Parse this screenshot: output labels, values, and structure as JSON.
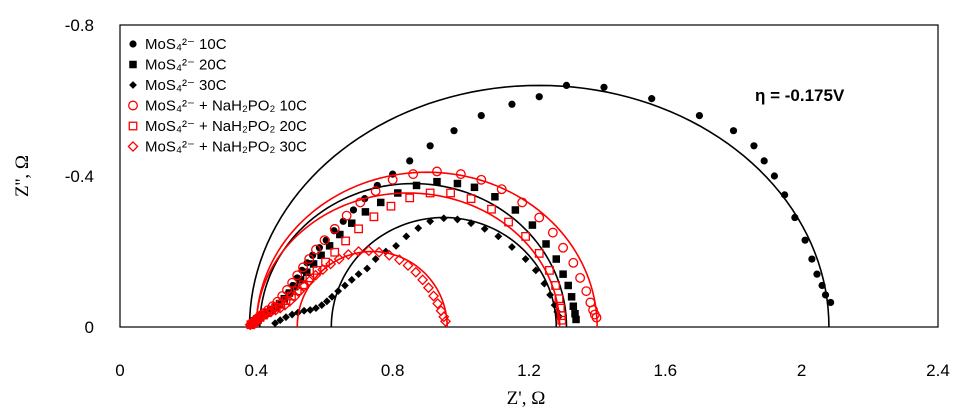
{
  "chart_data": {
    "type": "scatter",
    "title": "",
    "xlabel": "Z', Ω",
    "ylabel": "Z'', Ω",
    "xlim": [
      0,
      2.4
    ],
    "ylim": [
      0,
      -0.8
    ],
    "x_ticks": [
      "0",
      "0.4",
      "0.8",
      "1.2",
      "1.6",
      "2",
      "2.4"
    ],
    "y_ticks": [
      "0",
      "-0.4",
      "-0.8"
    ],
    "annotation": "η = -0.175V",
    "legend_position": "top-left",
    "series": [
      {
        "name": "MoS₄²⁻ 10C",
        "color": "#000000",
        "marker": "circle-filled",
        "semicircle": {
          "x0": 0.38,
          "x1": 2.08,
          "peak": -0.64
        },
        "points": [
          [
            0.384,
            -0.01
          ],
          [
            0.389,
            -0.015
          ],
          [
            0.395,
            -0.02
          ],
          [
            0.402,
            -0.026
          ],
          [
            0.41,
            -0.03
          ],
          [
            0.42,
            -0.035
          ],
          [
            0.432,
            -0.04
          ],
          [
            0.445,
            -0.045
          ],
          [
            0.458,
            -0.05
          ],
          [
            0.47,
            -0.06
          ],
          [
            0.482,
            -0.075
          ],
          [
            0.494,
            -0.09
          ],
          [
            0.507,
            -0.11
          ],
          [
            0.52,
            -0.13
          ],
          [
            0.534,
            -0.15
          ],
          [
            0.549,
            -0.17
          ],
          [
            0.565,
            -0.19
          ],
          [
            0.585,
            -0.21
          ],
          [
            0.605,
            -0.23
          ],
          [
            0.628,
            -0.255
          ],
          [
            0.655,
            -0.28
          ],
          [
            0.685,
            -0.31
          ],
          [
            0.718,
            -0.34
          ],
          [
            0.755,
            -0.375
          ],
          [
            0.8,
            -0.405
          ],
          [
            0.85,
            -0.44
          ],
          [
            0.91,
            -0.48
          ],
          [
            0.98,
            -0.52
          ],
          [
            1.06,
            -0.56
          ],
          [
            1.15,
            -0.59
          ],
          [
            1.23,
            -0.61
          ],
          [
            1.31,
            -0.64
          ],
          [
            1.42,
            -0.635
          ],
          [
            1.56,
            -0.605
          ],
          [
            1.7,
            -0.56
          ],
          [
            1.8,
            -0.52
          ],
          [
            1.86,
            -0.48
          ],
          [
            1.89,
            -0.44
          ],
          [
            1.92,
            -0.4
          ],
          [
            1.95,
            -0.35
          ],
          [
            1.98,
            -0.29
          ],
          [
            2.01,
            -0.23
          ],
          [
            2.03,
            -0.18
          ],
          [
            2.045,
            -0.14
          ],
          [
            2.06,
            -0.11
          ],
          [
            2.07,
            -0.085
          ],
          [
            2.085,
            -0.065
          ]
        ]
      },
      {
        "name": "MoS₄²⁻  20C",
        "color": "#000000",
        "marker": "square-filled",
        "semicircle": {
          "x0": 0.41,
          "x1": 1.31,
          "peak": -0.38
        },
        "points": [
          [
            0.392,
            -0.008
          ],
          [
            0.398,
            -0.013
          ],
          [
            0.405,
            -0.018
          ],
          [
            0.412,
            -0.024
          ],
          [
            0.42,
            -0.03
          ],
          [
            0.43,
            -0.037
          ],
          [
            0.442,
            -0.044
          ],
          [
            0.455,
            -0.052
          ],
          [
            0.468,
            -0.062
          ],
          [
            0.482,
            -0.075
          ],
          [
            0.497,
            -0.09
          ],
          [
            0.513,
            -0.107
          ],
          [
            0.53,
            -0.125
          ],
          [
            0.548,
            -0.145
          ],
          [
            0.568,
            -0.167
          ],
          [
            0.59,
            -0.19
          ],
          [
            0.615,
            -0.215
          ],
          [
            0.645,
            -0.245
          ],
          [
            0.68,
            -0.275
          ],
          [
            0.72,
            -0.305
          ],
          [
            0.765,
            -0.33
          ],
          [
            0.815,
            -0.355
          ],
          [
            0.87,
            -0.375
          ],
          [
            0.93,
            -0.385
          ],
          [
            0.99,
            -0.38
          ],
          [
            1.04,
            -0.37
          ],
          [
            1.1,
            -0.345
          ],
          [
            1.16,
            -0.31
          ],
          [
            1.21,
            -0.27
          ],
          [
            1.25,
            -0.22
          ],
          [
            1.28,
            -0.18
          ],
          [
            1.3,
            -0.14
          ],
          [
            1.315,
            -0.11
          ],
          [
            1.325,
            -0.08
          ],
          [
            1.33,
            -0.055
          ],
          [
            1.335,
            -0.035
          ],
          [
            1.338,
            -0.02
          ]
        ]
      },
      {
        "name": "MoS₄²⁻  30C",
        "color": "#000000",
        "marker": "diamond-filled",
        "semicircle": {
          "x0": 0.62,
          "x1": 1.28,
          "peak": -0.29
        },
        "points": [
          [
            0.455,
            -0.01
          ],
          [
            0.47,
            -0.018
          ],
          [
            0.487,
            -0.026
          ],
          [
            0.505,
            -0.033
          ],
          [
            0.522,
            -0.038
          ],
          [
            0.54,
            -0.043
          ],
          [
            0.558,
            -0.045
          ],
          [
            0.575,
            -0.05
          ],
          [
            0.592,
            -0.058
          ],
          [
            0.607,
            -0.068
          ],
          [
            0.622,
            -0.08
          ],
          [
            0.64,
            -0.095
          ],
          [
            0.66,
            -0.11
          ],
          [
            0.68,
            -0.125
          ],
          [
            0.7,
            -0.14
          ],
          [
            0.725,
            -0.155
          ],
          [
            0.75,
            -0.18
          ],
          [
            0.78,
            -0.2
          ],
          [
            0.81,
            -0.215
          ],
          [
            0.84,
            -0.24
          ],
          [
            0.875,
            -0.262
          ],
          [
            0.91,
            -0.28
          ],
          [
            0.95,
            -0.288
          ],
          [
            0.99,
            -0.285
          ],
          [
            1.03,
            -0.275
          ],
          [
            1.07,
            -0.26
          ],
          [
            1.11,
            -0.24
          ],
          [
            1.15,
            -0.212
          ],
          [
            1.19,
            -0.18
          ],
          [
            1.22,
            -0.15
          ],
          [
            1.245,
            -0.115
          ],
          [
            1.262,
            -0.085
          ],
          [
            1.275,
            -0.058
          ],
          [
            1.283,
            -0.04
          ],
          [
            1.288,
            -0.028
          ]
        ]
      },
      {
        "name": "MoS₄²⁻  + NaH₂PO₂ 10C",
        "color": "#ff0000",
        "marker": "circle-open",
        "semicircle": {
          "x0": 0.4,
          "x1": 1.4,
          "peak": -0.41
        },
        "points": [
          [
            0.386,
            -0.008
          ],
          [
            0.392,
            -0.013
          ],
          [
            0.398,
            -0.018
          ],
          [
            0.405,
            -0.024
          ],
          [
            0.413,
            -0.03
          ],
          [
            0.423,
            -0.037
          ],
          [
            0.435,
            -0.045
          ],
          [
            0.448,
            -0.055
          ],
          [
            0.462,
            -0.067
          ],
          [
            0.476,
            -0.082
          ],
          [
            0.49,
            -0.098
          ],
          [
            0.505,
            -0.117
          ],
          [
            0.52,
            -0.137
          ],
          [
            0.537,
            -0.158
          ],
          [
            0.555,
            -0.18
          ],
          [
            0.575,
            -0.205
          ],
          [
            0.6,
            -0.23
          ],
          [
            0.63,
            -0.26
          ],
          [
            0.665,
            -0.295
          ],
          [
            0.705,
            -0.33
          ],
          [
            0.75,
            -0.36
          ],
          [
            0.8,
            -0.39
          ],
          [
            0.86,
            -0.405
          ],
          [
            0.93,
            -0.412
          ],
          [
            1.0,
            -0.405
          ],
          [
            1.06,
            -0.39
          ],
          [
            1.12,
            -0.365
          ],
          [
            1.18,
            -0.33
          ],
          [
            1.23,
            -0.29
          ],
          [
            1.27,
            -0.25
          ],
          [
            1.3,
            -0.21
          ],
          [
            1.33,
            -0.17
          ],
          [
            1.35,
            -0.13
          ],
          [
            1.368,
            -0.095
          ],
          [
            1.38,
            -0.065
          ],
          [
            1.388,
            -0.045
          ],
          [
            1.393,
            -0.033
          ],
          [
            1.398,
            -0.025
          ]
        ]
      },
      {
        "name": "MoS₄²⁻  + NaH₂PO₂ 20C",
        "color": "#ff0000",
        "marker": "square-open",
        "semicircle": {
          "x0": 0.4,
          "x1": 1.29,
          "peak": -0.355
        },
        "points": [
          [
            0.384,
            -0.006
          ],
          [
            0.39,
            -0.01
          ],
          [
            0.396,
            -0.015
          ],
          [
            0.403,
            -0.02
          ],
          [
            0.411,
            -0.026
          ],
          [
            0.421,
            -0.032
          ],
          [
            0.432,
            -0.038
          ],
          [
            0.445,
            -0.045
          ],
          [
            0.458,
            -0.052
          ],
          [
            0.472,
            -0.06
          ],
          [
            0.487,
            -0.07
          ],
          [
            0.503,
            -0.082
          ],
          [
            0.52,
            -0.096
          ],
          [
            0.538,
            -0.112
          ],
          [
            0.557,
            -0.13
          ],
          [
            0.578,
            -0.15
          ],
          [
            0.603,
            -0.172
          ],
          [
            0.63,
            -0.198
          ],
          [
            0.662,
            -0.228
          ],
          [
            0.7,
            -0.26
          ],
          [
            0.745,
            -0.292
          ],
          [
            0.795,
            -0.32
          ],
          [
            0.85,
            -0.342
          ],
          [
            0.91,
            -0.355
          ],
          [
            0.97,
            -0.355
          ],
          [
            1.03,
            -0.34
          ],
          [
            1.09,
            -0.312
          ],
          [
            1.14,
            -0.278
          ],
          [
            1.19,
            -0.24
          ],
          [
            1.23,
            -0.195
          ],
          [
            1.26,
            -0.15
          ],
          [
            1.278,
            -0.11
          ],
          [
            1.288,
            -0.075
          ],
          [
            1.292,
            -0.05
          ],
          [
            1.295,
            -0.03
          ],
          [
            1.296,
            -0.018
          ]
        ]
      },
      {
        "name": "MoS₄²⁻  + NaH₂PO₂ 30C",
        "color": "#ff0000",
        "marker": "diamond-open",
        "semicircle": {
          "x0": 0.52,
          "x1": 0.96,
          "peak": -0.2
        },
        "points": [
          [
            0.382,
            -0.006
          ],
          [
            0.387,
            -0.01
          ],
          [
            0.393,
            -0.014
          ],
          [
            0.4,
            -0.018
          ],
          [
            0.408,
            -0.023
          ],
          [
            0.418,
            -0.028
          ],
          [
            0.43,
            -0.034
          ],
          [
            0.443,
            -0.04
          ],
          [
            0.457,
            -0.045
          ],
          [
            0.47,
            -0.05
          ],
          [
            0.484,
            -0.058
          ],
          [
            0.498,
            -0.068
          ],
          [
            0.512,
            -0.08
          ],
          [
            0.526,
            -0.094
          ],
          [
            0.54,
            -0.108
          ],
          [
            0.556,
            -0.122
          ],
          [
            0.574,
            -0.137
          ],
          [
            0.595,
            -0.152
          ],
          [
            0.618,
            -0.167
          ],
          [
            0.643,
            -0.18
          ],
          [
            0.67,
            -0.192
          ],
          [
            0.7,
            -0.2
          ],
          [
            0.73,
            -0.202
          ],
          [
            0.76,
            -0.198
          ],
          [
            0.79,
            -0.19
          ],
          [
            0.82,
            -0.178
          ],
          [
            0.845,
            -0.163
          ],
          [
            0.868,
            -0.145
          ],
          [
            0.888,
            -0.125
          ],
          [
            0.905,
            -0.104
          ],
          [
            0.92,
            -0.082
          ],
          [
            0.932,
            -0.062
          ],
          [
            0.942,
            -0.043
          ],
          [
            0.95,
            -0.027
          ],
          [
            0.955,
            -0.015
          ]
        ]
      }
    ]
  }
}
